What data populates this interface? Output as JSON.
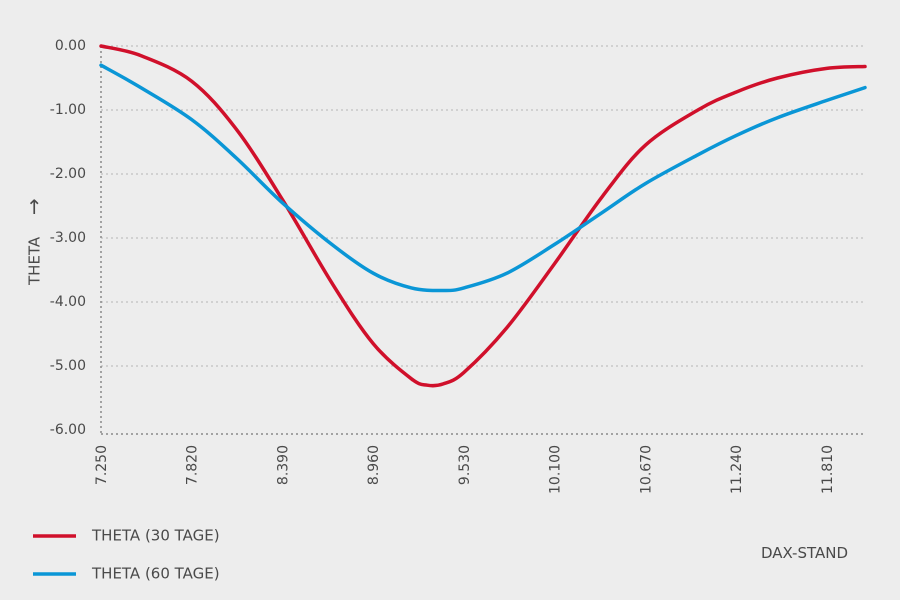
{
  "chart_data": {
    "type": "line",
    "xlabel": "DAX-STAND",
    "ylabel": "THETA",
    "ylabel_arrow": "→",
    "x_ticks": [
      "7.250",
      "7.820",
      "8.390",
      "8.960",
      "9.530",
      "10.100",
      "10.670",
      "11.240",
      "11.810"
    ],
    "y_ticks": [
      "0.00",
      "-1.00",
      "-2.00",
      "-3.00",
      "-4.00",
      "-5.00",
      "-6.00"
    ],
    "xlim": [
      7250,
      12050
    ],
    "ylim": [
      -6,
      0
    ],
    "grid": "horizontal-dotted",
    "legend_position": "bottom-left",
    "series": [
      {
        "name": "THETA (30 TAGE)",
        "color": "#d0102b",
        "x": [
          7250,
          7500,
          7820,
          8100,
          8390,
          8700,
          8960,
          9200,
          9300,
          9400,
          9530,
          9800,
          10100,
          10400,
          10670,
          11000,
          11240,
          11500,
          11810,
          12050
        ],
        "y": [
          0.0,
          -0.15,
          -0.55,
          -1.3,
          -2.4,
          -3.7,
          -4.65,
          -5.2,
          -5.3,
          -5.28,
          -5.1,
          -4.4,
          -3.4,
          -2.35,
          -1.55,
          -1.0,
          -0.72,
          -0.5,
          -0.35,
          -0.32
        ]
      },
      {
        "name": "THETA (60 TAGE)",
        "color": "#0a96d6",
        "x": [
          7250,
          7500,
          7820,
          8100,
          8390,
          8700,
          8960,
          9200,
          9400,
          9530,
          9800,
          10100,
          10400,
          10670,
          11000,
          11240,
          11500,
          11810,
          12050
        ],
        "y": [
          -0.3,
          -0.65,
          -1.15,
          -1.75,
          -2.45,
          -3.1,
          -3.55,
          -3.78,
          -3.82,
          -3.78,
          -3.55,
          -3.1,
          -2.6,
          -2.15,
          -1.7,
          -1.4,
          -1.12,
          -0.85,
          -0.65
        ]
      }
    ]
  }
}
